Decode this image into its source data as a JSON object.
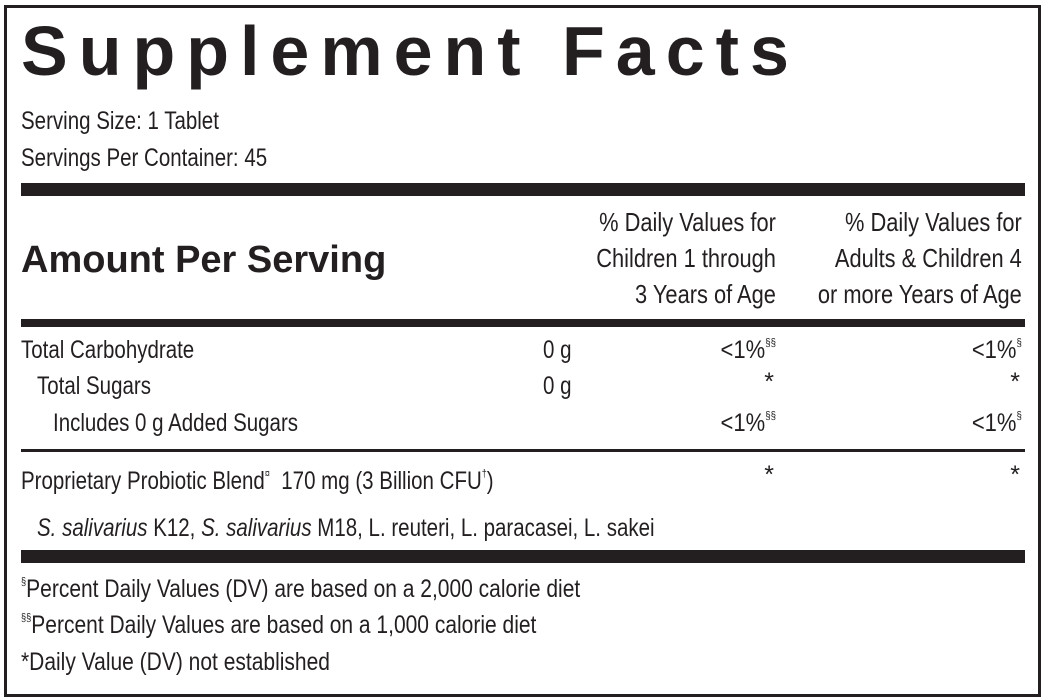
{
  "title": "Supplement Facts",
  "serving_size": "Serving Size: 1 Tablet",
  "servings_per_container": "Servings Per Container: 45",
  "amount_per_serving": "Amount Per Serving",
  "column_headers": {
    "children": [
      "% Daily Values for",
      "Children 1 through",
      "3 Years of Age"
    ],
    "adults": [
      "% Daily Values for",
      "Adults & Children 4",
      "or more Years of Age"
    ]
  },
  "nutrients": [
    {
      "name": "Total Carbohydrate",
      "amount": "0 g",
      "dv_children": "<1%",
      "dv_children_mark": "§§",
      "dv_adults": "<1%",
      "dv_adults_mark": "§"
    },
    {
      "name": "Total Sugars",
      "amount": "0 g",
      "dv_children": "*",
      "dv_adults": "*"
    },
    {
      "name": "Includes 0 g Added Sugars",
      "amount": "",
      "dv_children": "<1%",
      "dv_children_mark": "§§",
      "dv_adults": "<1%",
      "dv_adults_mark": "§"
    }
  ],
  "blend": {
    "name": "Proprietary Probiotic Blend",
    "name_mark": "¤",
    "amount": "170 mg (3 Billion CFU",
    "amount_mark": "†",
    "amount_close": ")",
    "dv_children": "*",
    "dv_adults": "*",
    "strains": {
      "s1_genus": "S. salivarius",
      "s1_strain": " K12, ",
      "s2_genus": "S. salivarius",
      "s2_strain": " M18, L. reuteri, L. paracasei, L. sakei"
    }
  },
  "footnotes": [
    {
      "mark": "§",
      "text": "Percent Daily Values (DV) are based on a 2,000 calorie diet"
    },
    {
      "mark": "§§",
      "text": "Percent Daily Values are based on a 1,000 calorie diet"
    },
    {
      "mark": "*",
      "text": "Daily Value (DV) not established"
    }
  ]
}
